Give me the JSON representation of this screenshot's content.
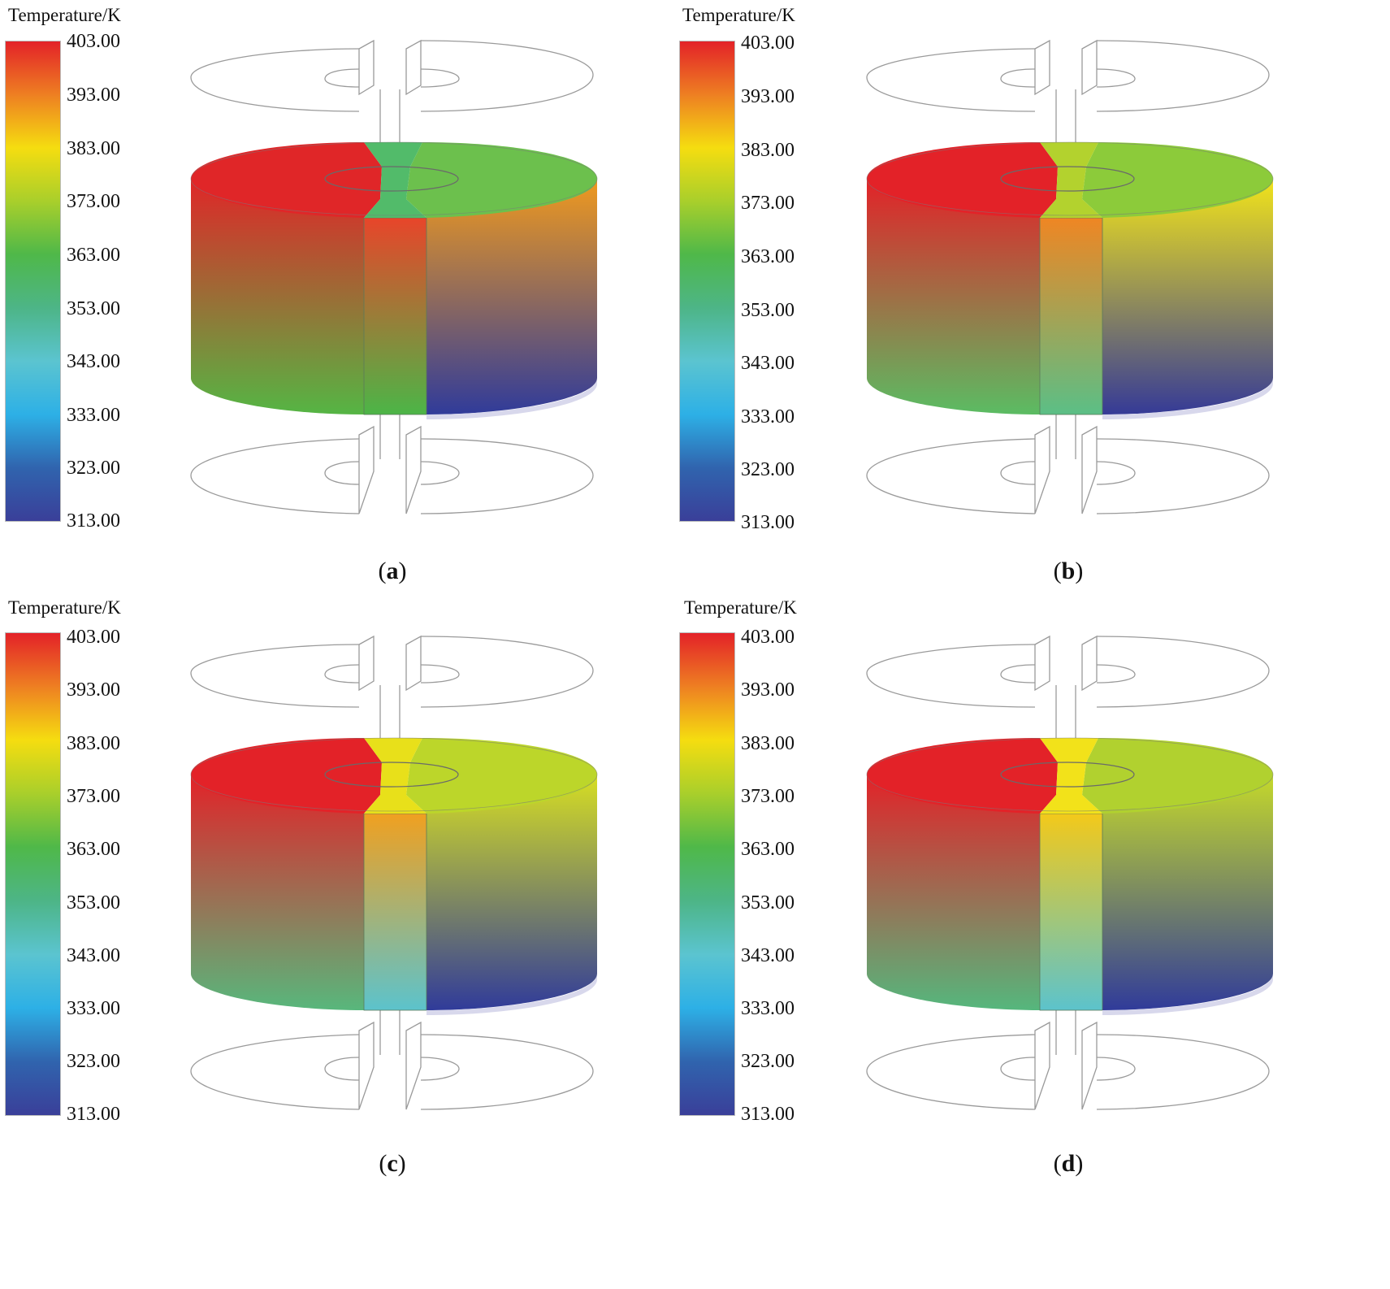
{
  "legend_title": "Temperature/K",
  "colorbar_ticks": [
    "403.00",
    "393.00",
    "383.00",
    "373.00",
    "363.00",
    "353.00",
    "343.00",
    "333.00",
    "323.00",
    "313.00"
  ],
  "colorbar_colors": [
    "#e32228",
    "#ee7f22",
    "#f5dd10",
    "#a9cf2b",
    "#4fb849",
    "#4db587",
    "#5bc4d0",
    "#2db0e6",
    "#3064ae",
    "#3a3f99"
  ],
  "panels": [
    {
      "id": "a",
      "caption_open": "(",
      "caption_letter": "a",
      "caption_close": ")",
      "left_top": "#e02628",
      "left_bottom": "#55b544",
      "right_top": "#f09a1e",
      "right_bottom": "#303b9a",
      "strip_top": "#e8452a",
      "strip_bottom": "#4cb547",
      "top_left": "#e02628",
      "top_right": "#6cc04d",
      "top_strip": "#52bb6a"
    },
    {
      "id": "b",
      "caption_open": "(",
      "caption_letter": "b",
      "caption_close": ")",
      "left_top": "#e32228",
      "left_bottom": "#5bbc63",
      "right_top": "#f2e41a",
      "right_bottom": "#353a97",
      "strip_top": "#ef8623",
      "strip_bottom": "#5bbf86",
      "top_left": "#e32228",
      "top_right": "#8ccb3a",
      "top_strip": "#b3d22e"
    },
    {
      "id": "c",
      "caption_open": "(",
      "caption_letter": "c",
      "caption_close": ")",
      "left_top": "#e32228",
      "left_bottom": "#58b77c",
      "right_top": "#d7df22",
      "right_bottom": "#303b9a",
      "strip_top": "#f0a020",
      "strip_bottom": "#5cc3cc",
      "top_left": "#e32228",
      "top_right": "#bcd62a",
      "top_strip": "#e8e01a"
    },
    {
      "id": "d",
      "caption_open": "(",
      "caption_letter": "d",
      "caption_close": ")",
      "left_top": "#e32228",
      "left_bottom": "#55b77d",
      "right_top": "#c5d92a",
      "right_bottom": "#303b9a",
      "strip_top": "#f3c91a",
      "strip_bottom": "#5cc3cc",
      "top_left": "#e32228",
      "top_right": "#b1d12f",
      "top_strip": "#f2e21a"
    }
  ]
}
